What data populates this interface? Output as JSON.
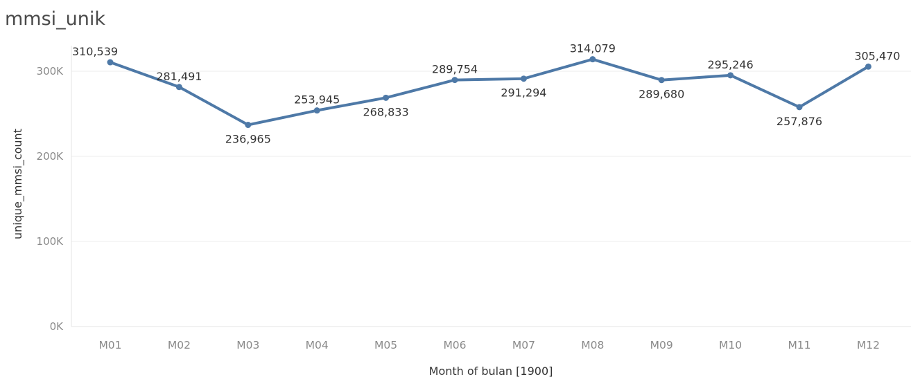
{
  "title": "mmsi_unik",
  "chart_data": {
    "type": "line",
    "categories": [
      "M01",
      "M02",
      "M03",
      "M04",
      "M05",
      "M06",
      "M07",
      "M08",
      "M09",
      "M10",
      "M11",
      "M12"
    ],
    "values": [
      310539,
      281491,
      236965,
      253945,
      268833,
      289754,
      291294,
      314079,
      289680,
      295246,
      257876,
      305470
    ],
    "value_labels": [
      "310,539",
      "281,491",
      "236,965",
      "253,945",
      "268,833",
      "289,754",
      "291,294",
      "314,079",
      "289,680",
      "295,246",
      "257,876",
      "305,470"
    ],
    "label_positions": [
      "above",
      "above",
      "below",
      "above",
      "below",
      "above",
      "below",
      "above",
      "below",
      "above",
      "below",
      "above"
    ],
    "xlabel": "Month of bulan [1900]",
    "ylabel": "unique_mmsi_count",
    "ylim": [
      0,
      330000
    ],
    "yticks": [
      0,
      100000,
      200000,
      300000
    ],
    "ytick_labels": [
      "0K",
      "100K",
      "200K",
      "300K"
    ],
    "grid": true,
    "line_color": "#4e79a7"
  }
}
